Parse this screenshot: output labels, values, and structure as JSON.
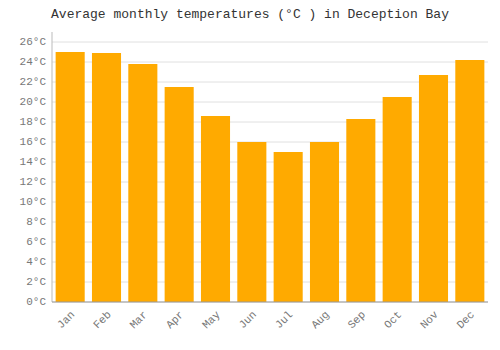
{
  "chart_data": {
    "type": "bar",
    "title": "Average monthly temperatures (°C ) in Deception Bay",
    "categories": [
      "Jan",
      "Feb",
      "Mar",
      "Apr",
      "May",
      "Jun",
      "Jul",
      "Aug",
      "Sep",
      "Oct",
      "Nov",
      "Dec"
    ],
    "values": [
      25.0,
      24.9,
      23.8,
      21.5,
      18.6,
      16.0,
      15.0,
      16.0,
      18.3,
      20.5,
      22.7,
      24.2
    ],
    "color": "#FFAA00",
    "ylim": [
      0,
      27
    ],
    "yticks": [
      {
        "value": 0,
        "label": "0°C"
      },
      {
        "value": 2,
        "label": "2°C"
      },
      {
        "value": 4,
        "label": "4°C"
      },
      {
        "value": 6,
        "label": "6°C"
      },
      {
        "value": 8,
        "label": "8°C"
      },
      {
        "value": 10,
        "label": "10°C"
      },
      {
        "value": 12,
        "label": "12°C"
      },
      {
        "value": 14,
        "label": "14°C"
      },
      {
        "value": 16,
        "label": "16°C"
      },
      {
        "value": 18,
        "label": "18°C"
      },
      {
        "value": 20,
        "label": "20°C"
      },
      {
        "value": 22,
        "label": "22°C"
      },
      {
        "value": 24,
        "label": "24°C"
      },
      {
        "value": 26,
        "label": "26°C"
      }
    ],
    "grid": true
  }
}
